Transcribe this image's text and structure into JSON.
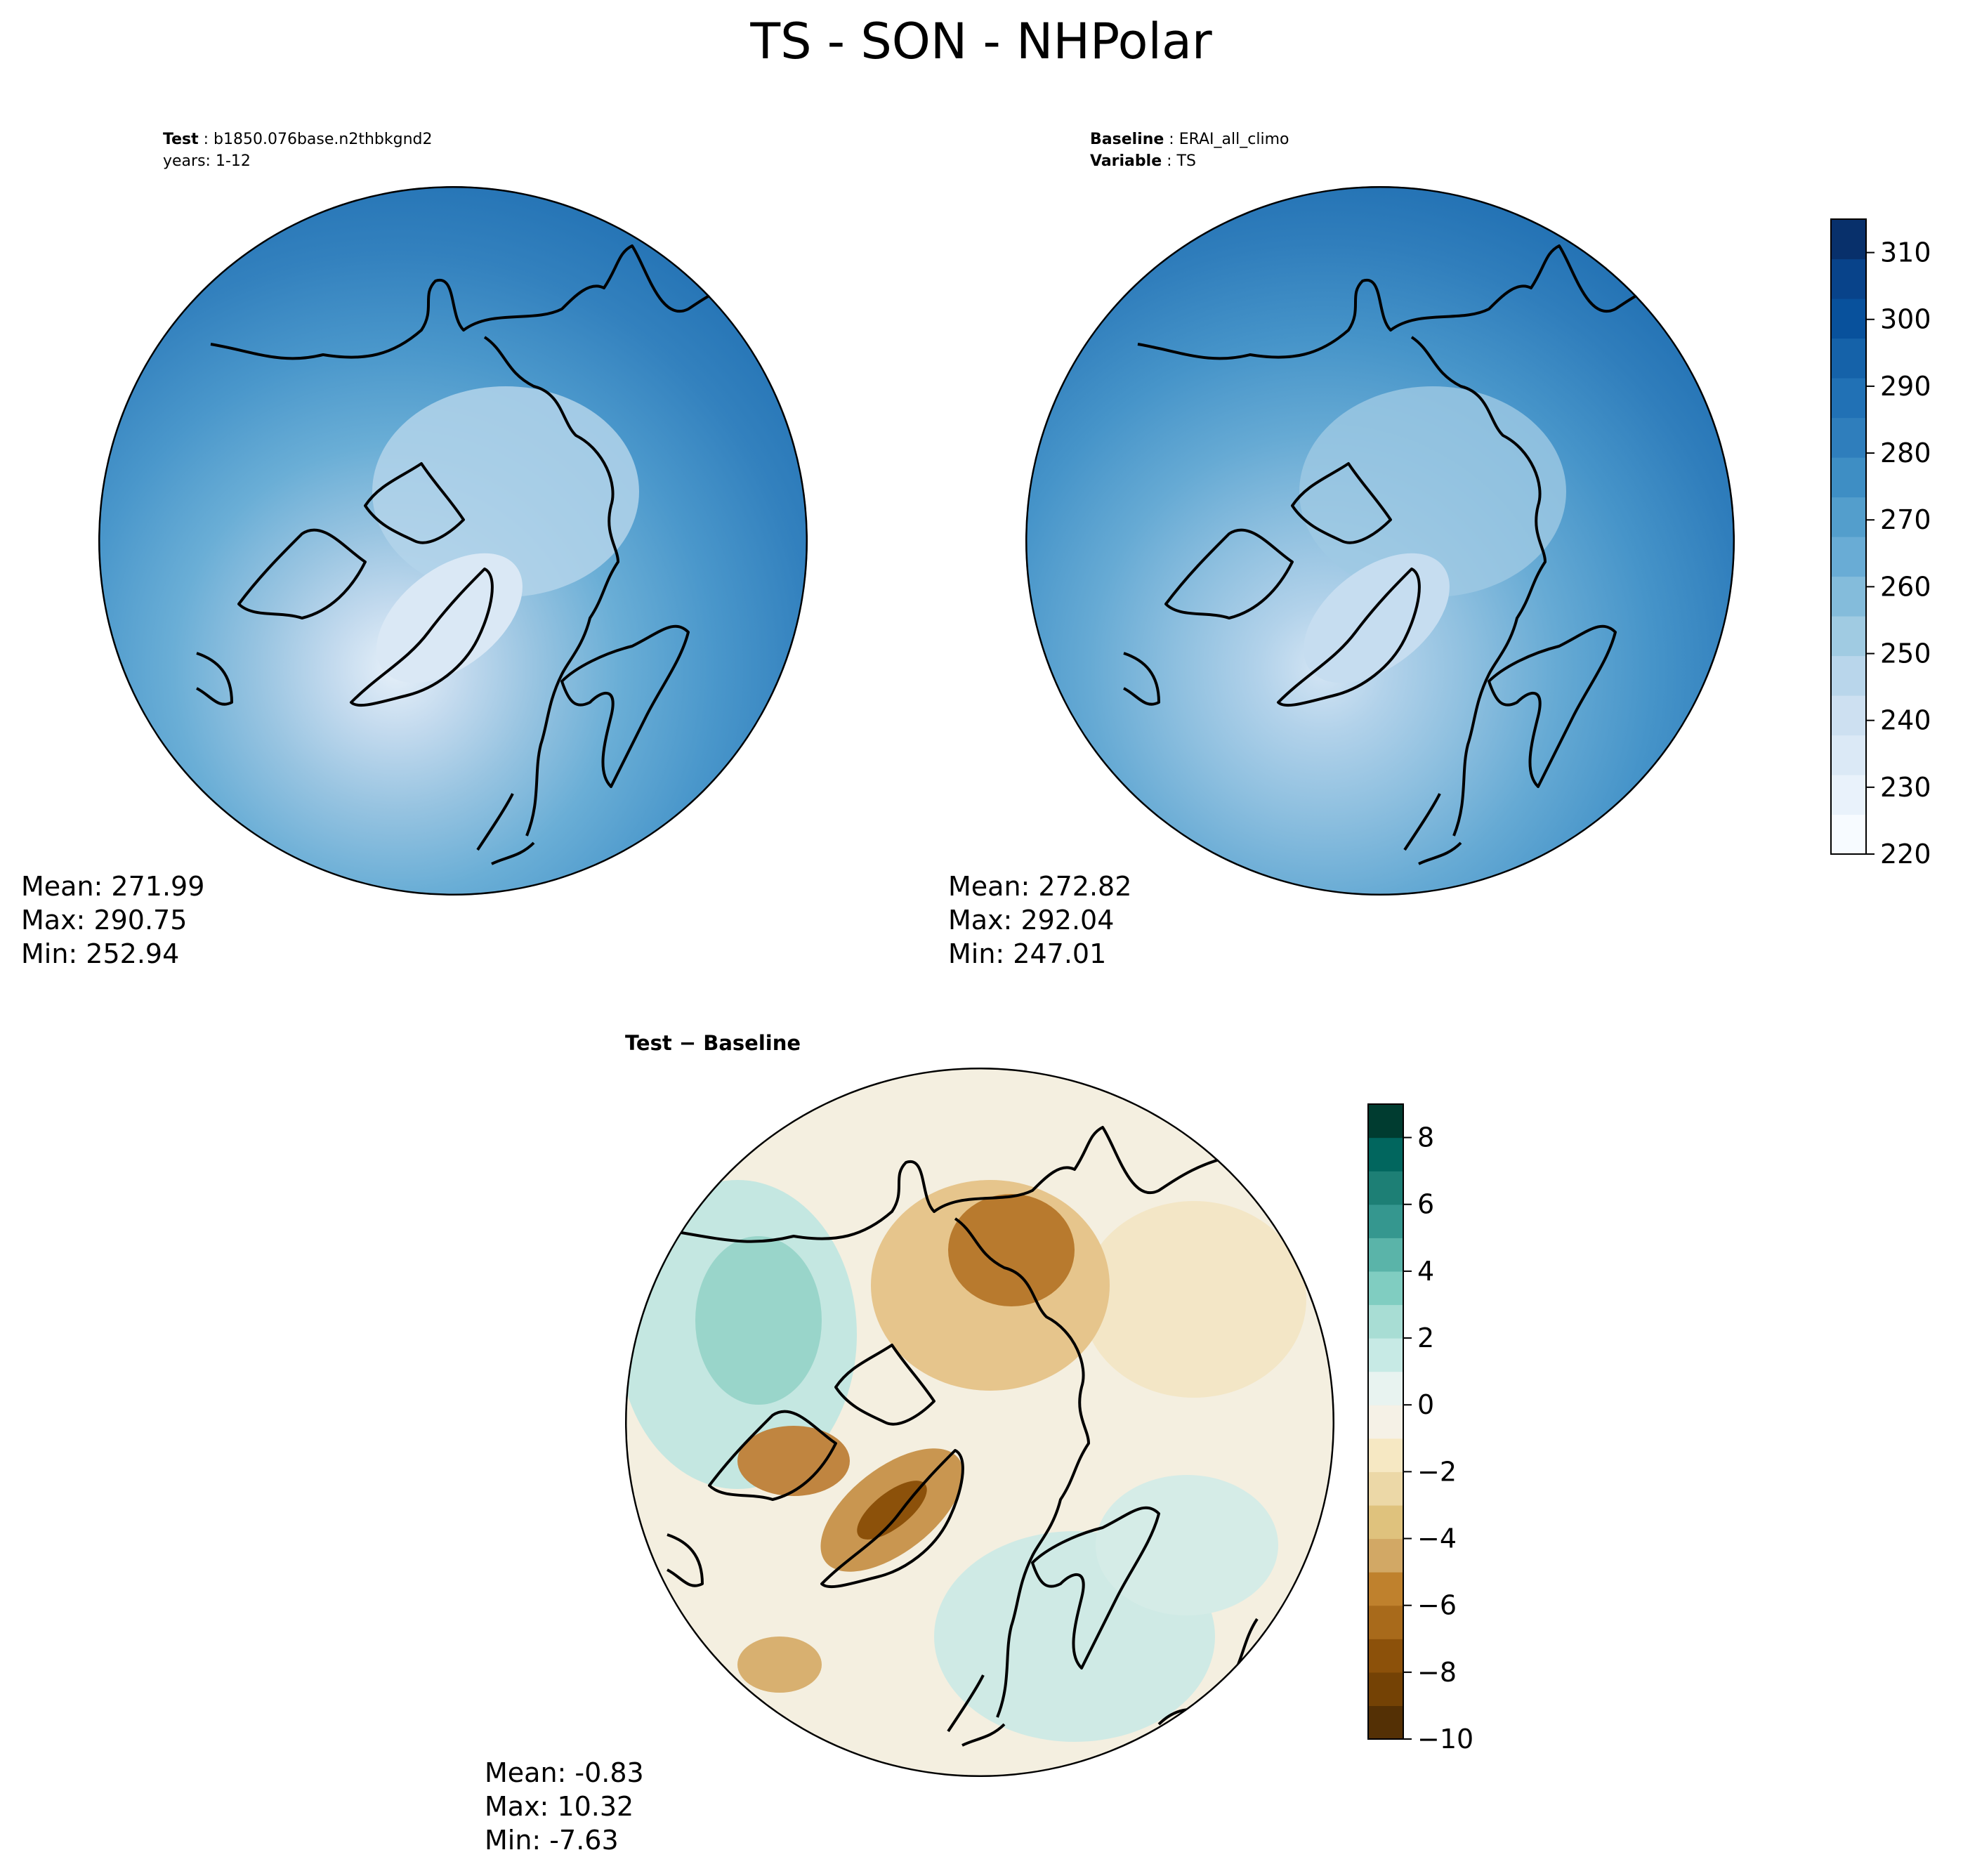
{
  "title": "TS - SON - NHPolar",
  "panels": {
    "test": {
      "header_bold": "Test",
      "header_value": "b1850.076base.n2thbkgnd2",
      "header_line2": "years: 1-12",
      "stats": {
        "mean": "Mean: 271.99",
        "max": "Max: 290.75",
        "min": "Min: 252.94"
      }
    },
    "baseline": {
      "header_bold": "Baseline",
      "header_value": "ERAI_all_climo",
      "header2_bold": "Variable",
      "header2_value": "TS",
      "stats": {
        "mean": "Mean: 272.82",
        "max": "Max: 292.04",
        "min": "Min: 247.01"
      }
    },
    "diff": {
      "header": "Test − Baseline",
      "stats": {
        "mean": "Mean: -0.83",
        "max": "Max: 10.32",
        "min": "Min: -7.63"
      }
    }
  },
  "colorbars": {
    "main": {
      "colormap": "Blues",
      "ticks": [
        "220",
        "230",
        "240",
        "250",
        "260",
        "270",
        "280",
        "290",
        "300",
        "310"
      ],
      "range": [
        220,
        315
      ],
      "colors": [
        "#f7fbff",
        "#e9f2fb",
        "#dbe9f6",
        "#cde0f1",
        "#b9d6eb",
        "#a0cbe2",
        "#84bcdb",
        "#69acd5",
        "#539ecc",
        "#3e8ec4",
        "#2f7ebc",
        "#2171b5",
        "#1562a9",
        "#08519c",
        "#08438a",
        "#08306b"
      ]
    },
    "diff": {
      "colormap": "BrBG",
      "ticks": [
        "−10",
        "−8",
        "−6",
        "−4",
        "−2",
        "0",
        "2",
        "4",
        "6",
        "8"
      ],
      "range": [
        -10,
        9
      ],
      "colors": [
        "#543005",
        "#744205",
        "#8c510a",
        "#a86a1b",
        "#bf812d",
        "#d2a865",
        "#dfc27d",
        "#ecd8a7",
        "#f6e8c3",
        "#f5f1e6",
        "#e8f3f0",
        "#c7eae5",
        "#a8ddd4",
        "#80cdc1",
        "#5ab4a9",
        "#35978f",
        "#1d7f75",
        "#01665e",
        "#003c30"
      ]
    }
  }
}
